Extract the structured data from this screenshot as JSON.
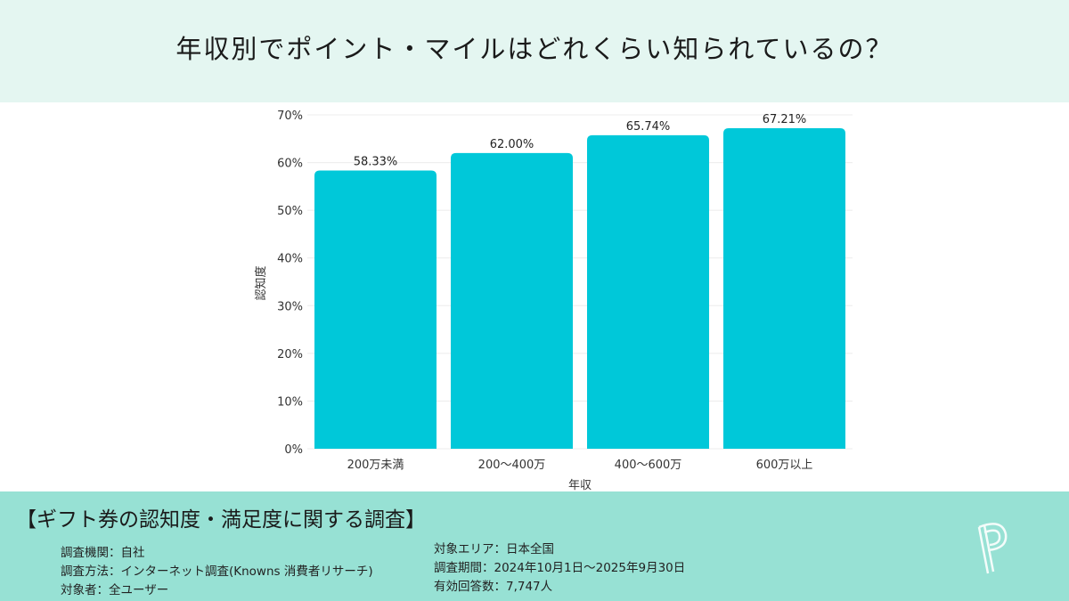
{
  "title": "年収別でポイント・マイルはどれくらい知られているの？",
  "chart_data": {
    "type": "bar",
    "categories": [
      "200万未満",
      "200〜400万",
      "400〜600万",
      "600万以上"
    ],
    "values": [
      58.33,
      62.0,
      65.74,
      67.21
    ],
    "data_labels": [
      "58.33%",
      "62.00%",
      "65.74%",
      "67.21%"
    ],
    "xlabel": "年収",
    "ylabel": "認知度",
    "ylim": [
      0,
      70
    ],
    "yticks": [
      "0%",
      "10%",
      "20%",
      "30%",
      "40%",
      "50%",
      "60%",
      "70%"
    ],
    "grid": true,
    "bar_color": "#00c8d9"
  },
  "footer": {
    "title": "【ギフト券の認知度・満足度に関する調査】",
    "left": [
      "調査機関：自社",
      "調査方法：インターネット調査(Knowns 消費者リサーチ)",
      "対象者：全ユーザー"
    ],
    "right": [
      "対象エリア：日本全国",
      "調査期間：2024年10月1日〜2025年9月30日",
      "有効回答数：7,747人"
    ]
  },
  "colors": {
    "header_bg": "#e4f6f1",
    "footer_bg": "#97e1d4"
  }
}
